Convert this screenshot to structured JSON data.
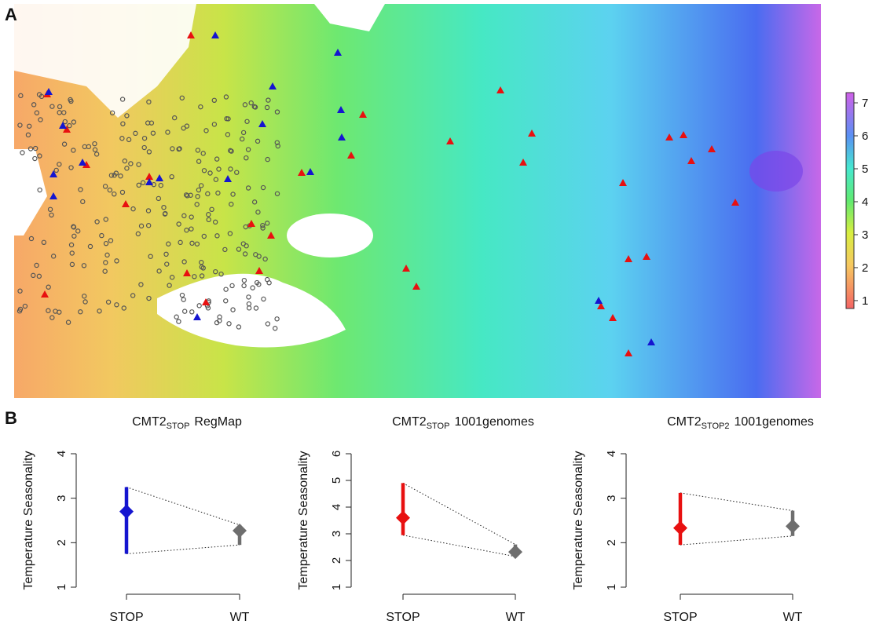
{
  "panels": [
    "A",
    "B"
  ],
  "chart_data": [
    {
      "type": "map",
      "colorbar_lim": [
        0.76,
        7.31
      ],
      "colorbar_ticks": [
        1,
        2,
        3,
        4,
        5,
        6,
        7
      ]
    },
    {
      "type": "pointrange",
      "title": "CMT2",
      "title_sub": "STOP",
      "title_rest": "RegMap",
      "ylabel": "Temperature Seasonality",
      "categories": [
        "STOP",
        "WT"
      ],
      "values": [
        2.7,
        2.27
      ],
      "lower": [
        1.75,
        1.95
      ],
      "upper": [
        3.25,
        2.4
      ],
      "colors": [
        "#1515d0",
        "#6e6e6e"
      ],
      "ylim": [
        1,
        4
      ],
      "yticks": [
        1,
        2,
        3,
        4
      ]
    },
    {
      "type": "pointrange",
      "title": "CMT2",
      "title_sub": "STOP",
      "title_rest": "1001genomes",
      "ylabel": "Temperature Seasonality",
      "categories": [
        "STOP",
        "WT"
      ],
      "values": [
        3.6,
        2.32
      ],
      "lower": [
        2.95,
        2.15
      ],
      "upper": [
        4.9,
        2.6
      ],
      "colors": [
        "#e81010",
        "#6e6e6e"
      ],
      "ylim": [
        1,
        6
      ],
      "yticks": [
        1,
        2,
        3,
        4,
        5,
        6
      ]
    },
    {
      "type": "pointrange",
      "title": "CMT2",
      "title_sub": "STOP2",
      "title_rest": "1001genomes",
      "ylabel": "Temperature Seasonality",
      "categories": [
        "STOP",
        "WT"
      ],
      "values": [
        2.33,
        2.37
      ],
      "lower": [
        1.95,
        2.15
      ],
      "upper": [
        3.12,
        2.72
      ],
      "colors": [
        "#e81010",
        "#6e6e6e"
      ],
      "ylim": [
        1,
        4
      ],
      "yticks": [
        1,
        2,
        3,
        4
      ]
    }
  ]
}
